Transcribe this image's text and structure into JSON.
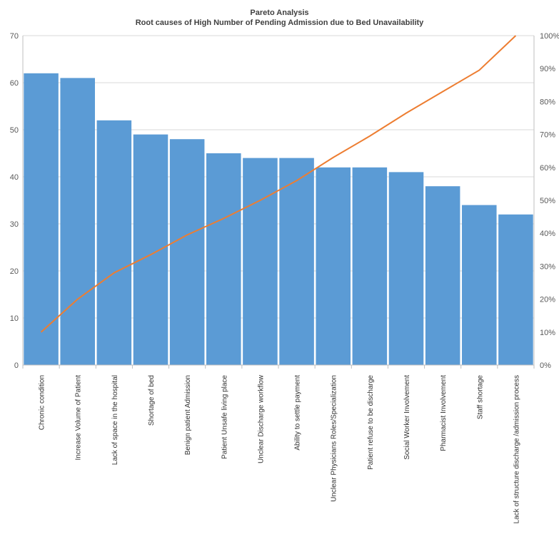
{
  "chart_data": {
    "type": "bar",
    "title": "Pareto Analysis",
    "subtitle": "Root causes of  High Number of Pending Admission due to Bed Unavailability",
    "xlabel": "",
    "ylabel": "",
    "ylim": [
      0,
      70
    ],
    "y2lim": [
      0,
      100
    ],
    "yticks": [
      "0",
      "10",
      "20",
      "30",
      "40",
      "50",
      "60",
      "70"
    ],
    "y2ticks": [
      "0%",
      "10%",
      "20%",
      "30%",
      "40%",
      "50%",
      "60%",
      "70%",
      "80%",
      "90%",
      "100%"
    ],
    "grid": true,
    "legend": "none",
    "categories": [
      "Chronic condition",
      "Increase Volume of Patient",
      "Lack of space in the hospital",
      "Shortage of bed",
      "Benign patient Admission",
      "Patient Unsafe living place",
      "Unclear Discharge workflow",
      "Ability to settle payment",
      "Unclear Physicians Roles/Specialization",
      "Patient refuse to be discharge",
      "Social Worker Involvement",
      "Pharmacist Involvement",
      "Staff shortage",
      "Lack of structure discharge /admission process"
    ],
    "series": [
      {
        "type": "bar",
        "axis": "left",
        "values": [
          62,
          61,
          52,
          49,
          48,
          45,
          44,
          44,
          42,
          42,
          41,
          38,
          34,
          32
        ]
      },
      {
        "type": "line",
        "axis": "right",
        "values": [
          10,
          20,
          28,
          33.5,
          39.5,
          44.5,
          50,
          56,
          63,
          69.5,
          76.5,
          83,
          89.5,
          100
        ]
      }
    ],
    "colors": {
      "bar": "#5B9BD5",
      "line": "#ED7D31",
      "grid": "#D9D9D9",
      "axis": "#BFBFBF"
    }
  }
}
